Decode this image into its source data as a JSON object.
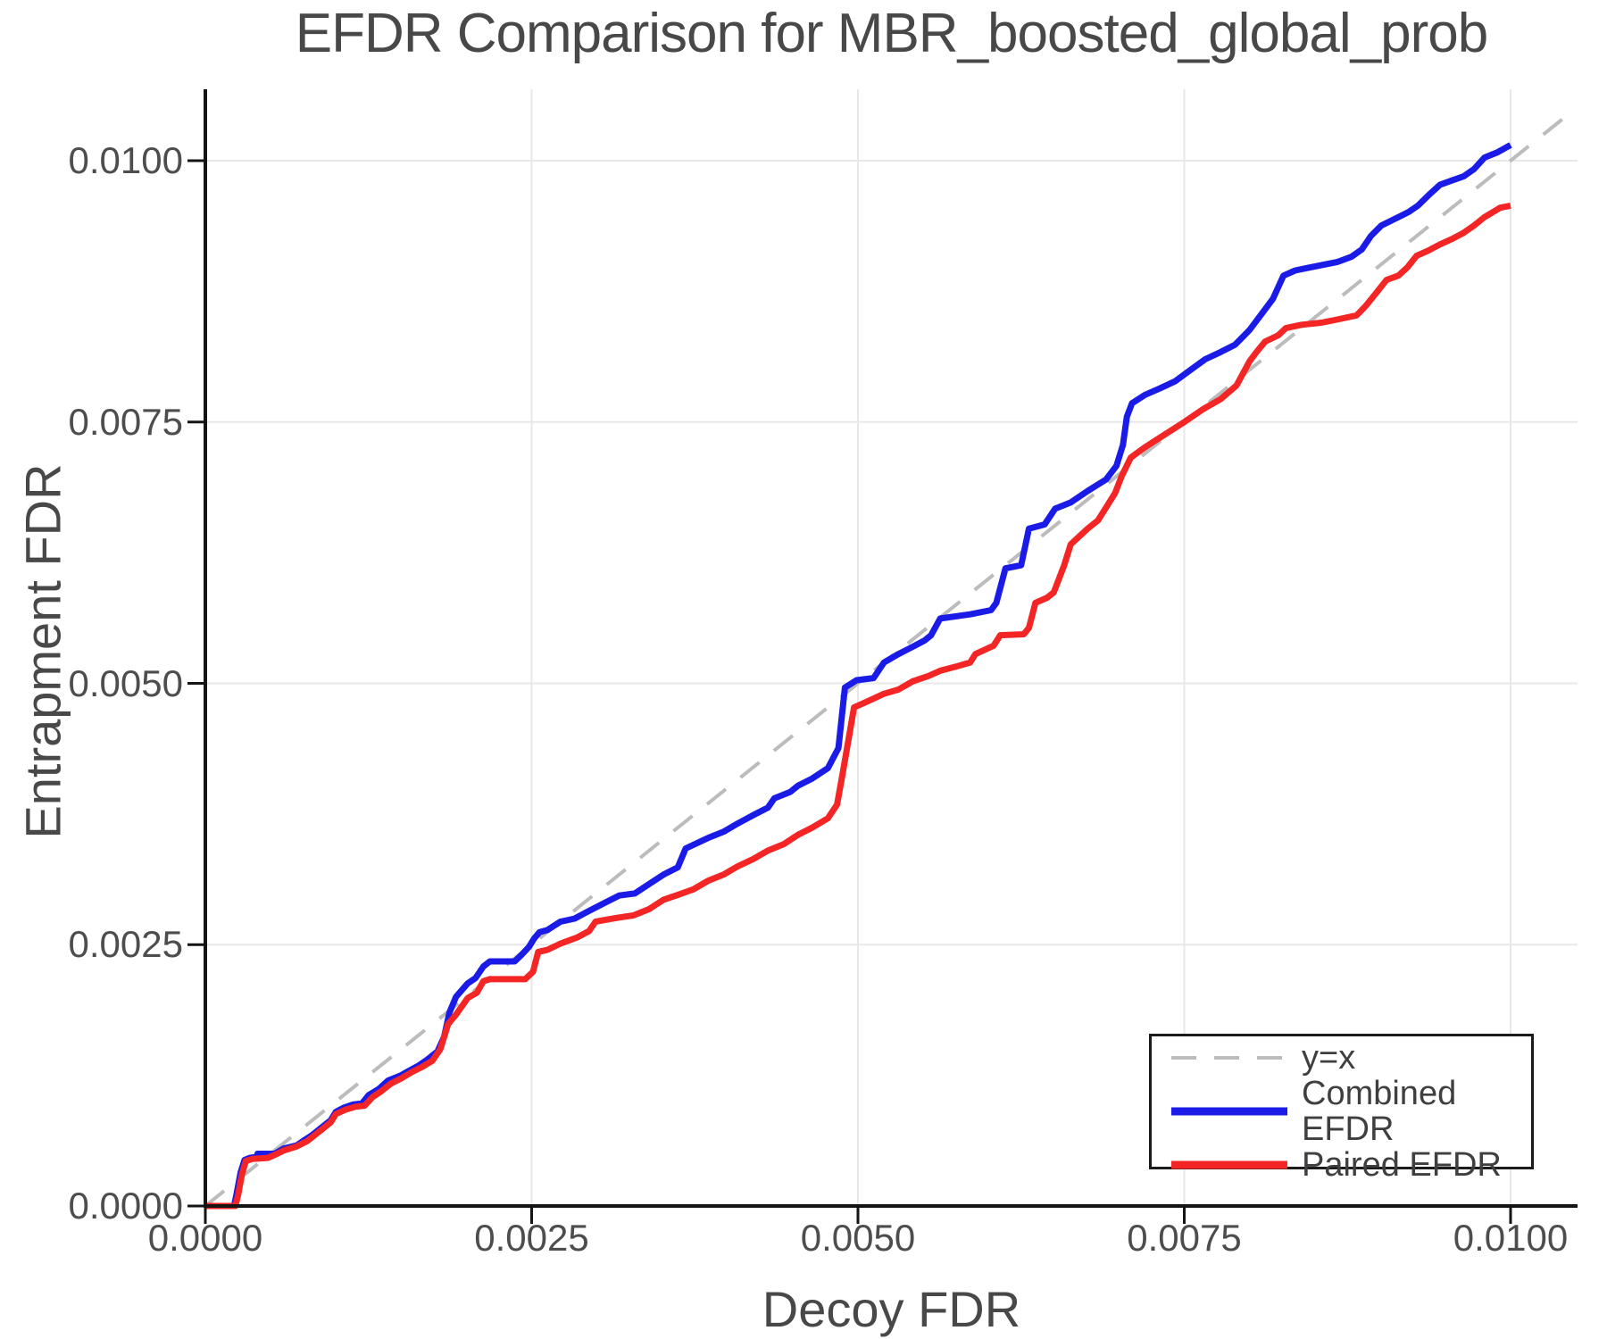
{
  "title": "EFDR Comparison for MBR_boosted_global_prob",
  "chart_data": {
    "type": "line",
    "title": "EFDR Comparison for MBR_boosted_global_prob",
    "xlabel": "Decoy FDR",
    "ylabel": "Entrapment FDR",
    "xlim": [
      0.0,
      0.01051
    ],
    "ylim": [
      0.0,
      0.01068
    ],
    "grid": true,
    "legend_position": "lower right",
    "x_ticks": {
      "values": [
        0.0,
        0.0025,
        0.005,
        0.0075,
        0.01
      ],
      "labels": [
        "0.0000",
        "0.0025",
        "0.0050",
        "0.0075",
        "0.0100"
      ]
    },
    "y_ticks": {
      "values": [
        0.0,
        0.0025,
        0.005,
        0.0075,
        0.01
      ],
      "labels": [
        "0.0000",
        "0.0025",
        "0.0050",
        "0.0075",
        "0.0100"
      ]
    },
    "colors": {
      "grid": "#e8e8e8",
      "spine": "#141414",
      "tick_text": "#4d4d4d",
      "title_text": "#484848",
      "reference_line": "#bcbcbc",
      "combined": "#1b1be8",
      "paired": "#f42525"
    },
    "series": [
      {
        "name": "y=x",
        "role": "reference",
        "style": "dashed",
        "color": "#bcbcbc",
        "width": 4,
        "points": [
          [
            0.0,
            0.0
          ],
          [
            0.0105,
            0.0105
          ]
        ]
      },
      {
        "name": "Combined EFDR",
        "role": "data",
        "style": "solid",
        "color": "#1b1be8",
        "width": 7,
        "points": [
          [
            0,
            0
          ],
          [
            0.00022,
            0
          ],
          [
            0.00024,
            0.00012
          ],
          [
            0.00027,
            0.00032
          ],
          [
            0.0003,
            0.00044
          ],
          [
            0.00034,
            0.00046
          ],
          [
            0.00039,
            0.00047
          ],
          [
            0.0004,
            0.0005
          ],
          [
            0.00053,
            0.0005
          ],
          [
            0.0006,
            0.00055
          ],
          [
            0.0007,
            0.00058
          ],
          [
            0.00076,
            0.00063
          ],
          [
            0.00082,
            0.00068
          ],
          [
            0.0009,
            0.00076
          ],
          [
            0.00096,
            0.00082
          ],
          [
            0.001,
            0.0009
          ],
          [
            0.00106,
            0.00094
          ],
          [
            0.00113,
            0.00097
          ],
          [
            0.0012,
            0.00098
          ],
          [
            0.00125,
            0.00106
          ],
          [
            0.00133,
            0.00112
          ],
          [
            0.0014,
            0.0012
          ],
          [
            0.0015,
            0.00125
          ],
          [
            0.00157,
            0.0013
          ],
          [
            0.00163,
            0.00134
          ],
          [
            0.0017,
            0.0014
          ],
          [
            0.00178,
            0.00148
          ],
          [
            0.00183,
            0.00162
          ],
          [
            0.00187,
            0.00185
          ],
          [
            0.00192,
            0.002
          ],
          [
            0.00201,
            0.00213
          ],
          [
            0.00207,
            0.00218
          ],
          [
            0.00213,
            0.00229
          ],
          [
            0.00218,
            0.00234
          ],
          [
            0.00237,
            0.00234
          ],
          [
            0.00242,
            0.0024
          ],
          [
            0.00248,
            0.00248
          ],
          [
            0.00252,
            0.00256
          ],
          [
            0.00256,
            0.00262
          ],
          [
            0.00262,
            0.00264
          ],
          [
            0.00272,
            0.00272
          ],
          [
            0.00283,
            0.00275
          ],
          [
            0.00292,
            0.00281
          ],
          [
            0.00306,
            0.0029
          ],
          [
            0.00317,
            0.00297
          ],
          [
            0.00329,
            0.00299
          ],
          [
            0.0034,
            0.00308
          ],
          [
            0.00351,
            0.00317
          ],
          [
            0.00362,
            0.00324
          ],
          [
            0.00368,
            0.00342
          ],
          [
            0.00385,
            0.00352
          ],
          [
            0.00397,
            0.00358
          ],
          [
            0.00408,
            0.00366
          ],
          [
            0.0042,
            0.00374
          ],
          [
            0.00431,
            0.00381
          ],
          [
            0.00436,
            0.0039
          ],
          [
            0.00448,
            0.00396
          ],
          [
            0.00454,
            0.00402
          ],
          [
            0.00465,
            0.00409
          ],
          [
            0.00477,
            0.00419
          ],
          [
            0.00485,
            0.00438
          ],
          [
            0.0049,
            0.00496
          ],
          [
            0.00499,
            0.00503
          ],
          [
            0.00512,
            0.00505
          ],
          [
            0.0052,
            0.0052
          ],
          [
            0.00531,
            0.00528
          ],
          [
            0.00542,
            0.00535
          ],
          [
            0.00551,
            0.00541
          ],
          [
            0.00556,
            0.00546
          ],
          [
            0.00563,
            0.00562
          ],
          [
            0.00586,
            0.00566
          ],
          [
            0.00602,
            0.0057
          ],
          [
            0.00606,
            0.00577
          ],
          [
            0.00613,
            0.0061
          ],
          [
            0.00625,
            0.00613
          ],
          [
            0.00631,
            0.00648
          ],
          [
            0.00643,
            0.00652
          ],
          [
            0.00651,
            0.00667
          ],
          [
            0.00663,
            0.00673
          ],
          [
            0.00676,
            0.00684
          ],
          [
            0.0069,
            0.00695
          ],
          [
            0.00698,
            0.00708
          ],
          [
            0.00703,
            0.00728
          ],
          [
            0.00706,
            0.00755
          ],
          [
            0.0071,
            0.00768
          ],
          [
            0.0072,
            0.00776
          ],
          [
            0.00731,
            0.00782
          ],
          [
            0.00743,
            0.00789
          ],
          [
            0.00755,
            0.008
          ],
          [
            0.00766,
            0.0081
          ],
          [
            0.00778,
            0.00817
          ],
          [
            0.00789,
            0.00824
          ],
          [
            0.008,
            0.00838
          ],
          [
            0.00809,
            0.00853
          ],
          [
            0.00818,
            0.00868
          ],
          [
            0.00826,
            0.0089
          ],
          [
            0.00835,
            0.00895
          ],
          [
            0.00843,
            0.00897
          ],
          [
            0.00855,
            0.009
          ],
          [
            0.00867,
            0.00903
          ],
          [
            0.00878,
            0.00908
          ],
          [
            0.00886,
            0.00915
          ],
          [
            0.00893,
            0.00928
          ],
          [
            0.00901,
            0.00938
          ],
          [
            0.00914,
            0.00946
          ],
          [
            0.00922,
            0.00951
          ],
          [
            0.00929,
            0.00957
          ],
          [
            0.00938,
            0.00968
          ],
          [
            0.00946,
            0.00977
          ],
          [
            0.00955,
            0.00981
          ],
          [
            0.00964,
            0.00985
          ],
          [
            0.00972,
            0.00992
          ],
          [
            0.0098,
            0.01003
          ],
          [
            0.0099,
            0.01008
          ],
          [
            0.01,
            0.01015
          ]
        ]
      },
      {
        "name": "Paired EFDR",
        "role": "data",
        "style": "solid",
        "color": "#f42525",
        "width": 7,
        "points": [
          [
            0,
            0
          ],
          [
            0.00023,
            0
          ],
          [
            0.00025,
            0.0001
          ],
          [
            0.00028,
            0.0003
          ],
          [
            0.00031,
            0.00043
          ],
          [
            0.00036,
            0.00045
          ],
          [
            0.00048,
            0.00046
          ],
          [
            0.00055,
            0.0005
          ],
          [
            0.0006,
            0.00053
          ],
          [
            0.0007,
            0.00057
          ],
          [
            0.00078,
            0.00062
          ],
          [
            0.00088,
            0.00072
          ],
          [
            0.00096,
            0.0008
          ],
          [
            0.001,
            0.00088
          ],
          [
            0.00107,
            0.00092
          ],
          [
            0.00115,
            0.00095
          ],
          [
            0.00122,
            0.00096
          ],
          [
            0.00128,
            0.00104
          ],
          [
            0.00135,
            0.0011
          ],
          [
            0.00142,
            0.00117
          ],
          [
            0.0015,
            0.00122
          ],
          [
            0.00158,
            0.00128
          ],
          [
            0.00166,
            0.00133
          ],
          [
            0.00174,
            0.00139
          ],
          [
            0.0018,
            0.0015
          ],
          [
            0.00186,
            0.00174
          ],
          [
            0.00192,
            0.00183
          ],
          [
            0.00201,
            0.00199
          ],
          [
            0.00208,
            0.00204
          ],
          [
            0.00213,
            0.00215
          ],
          [
            0.00218,
            0.00217
          ],
          [
            0.00245,
            0.00217
          ],
          [
            0.00251,
            0.00224
          ],
          [
            0.00255,
            0.00243
          ],
          [
            0.00262,
            0.00245
          ],
          [
            0.00272,
            0.00251
          ],
          [
            0.00285,
            0.00257
          ],
          [
            0.00294,
            0.00263
          ],
          [
            0.00299,
            0.00272
          ],
          [
            0.00308,
            0.00274
          ],
          [
            0.00317,
            0.00276
          ],
          [
            0.00328,
            0.00278
          ],
          [
            0.0034,
            0.00284
          ],
          [
            0.00351,
            0.00293
          ],
          [
            0.00363,
            0.00298
          ],
          [
            0.00374,
            0.00303
          ],
          [
            0.00385,
            0.00311
          ],
          [
            0.00397,
            0.00317
          ],
          [
            0.00408,
            0.00325
          ],
          [
            0.0042,
            0.00332
          ],
          [
            0.00431,
            0.0034
          ],
          [
            0.00443,
            0.00346
          ],
          [
            0.00454,
            0.00355
          ],
          [
            0.00465,
            0.00362
          ],
          [
            0.00477,
            0.00371
          ],
          [
            0.00484,
            0.00384
          ],
          [
            0.00488,
            0.00412
          ],
          [
            0.00493,
            0.00448
          ],
          [
            0.00497,
            0.00477
          ],
          [
            0.00506,
            0.00482
          ],
          [
            0.0052,
            0.0049
          ],
          [
            0.00531,
            0.00494
          ],
          [
            0.00542,
            0.00502
          ],
          [
            0.00554,
            0.00507
          ],
          [
            0.00563,
            0.00512
          ],
          [
            0.00575,
            0.00516
          ],
          [
            0.00586,
            0.0052
          ],
          [
            0.0059,
            0.00528
          ],
          [
            0.00604,
            0.00536
          ],
          [
            0.00609,
            0.00546
          ],
          [
            0.00627,
            0.00547
          ],
          [
            0.00631,
            0.00553
          ],
          [
            0.00636,
            0.00577
          ],
          [
            0.00645,
            0.00582
          ],
          [
            0.0065,
            0.00587
          ],
          [
            0.00658,
            0.00613
          ],
          [
            0.00663,
            0.00633
          ],
          [
            0.00676,
            0.00648
          ],
          [
            0.00684,
            0.00656
          ],
          [
            0.0069,
            0.00668
          ],
          [
            0.00697,
            0.00682
          ],
          [
            0.00702,
            0.00698
          ],
          [
            0.00709,
            0.00716
          ],
          [
            0.0072,
            0.00726
          ],
          [
            0.00735,
            0.00738
          ],
          [
            0.0075,
            0.0075
          ],
          [
            0.00764,
            0.00762
          ],
          [
            0.00778,
            0.00772
          ],
          [
            0.0079,
            0.00785
          ],
          [
            0.008,
            0.00808
          ],
          [
            0.00806,
            0.00818
          ],
          [
            0.00812,
            0.00827
          ],
          [
            0.00822,
            0.00833
          ],
          [
            0.00828,
            0.0084
          ],
          [
            0.0084,
            0.00843
          ],
          [
            0.00855,
            0.00845
          ],
          [
            0.00867,
            0.00848
          ],
          [
            0.00882,
            0.00852
          ],
          [
            0.00889,
            0.00861
          ],
          [
            0.00898,
            0.00875
          ],
          [
            0.00905,
            0.00886
          ],
          [
            0.00914,
            0.0089
          ],
          [
            0.00921,
            0.00898
          ],
          [
            0.00928,
            0.00909
          ],
          [
            0.00937,
            0.00914
          ],
          [
            0.00946,
            0.0092
          ],
          [
            0.00955,
            0.00925
          ],
          [
            0.00964,
            0.00931
          ],
          [
            0.00972,
            0.00938
          ],
          [
            0.0098,
            0.00946
          ],
          [
            0.00992,
            0.00955
          ],
          [
            0.01,
            0.00957
          ]
        ]
      }
    ]
  }
}
